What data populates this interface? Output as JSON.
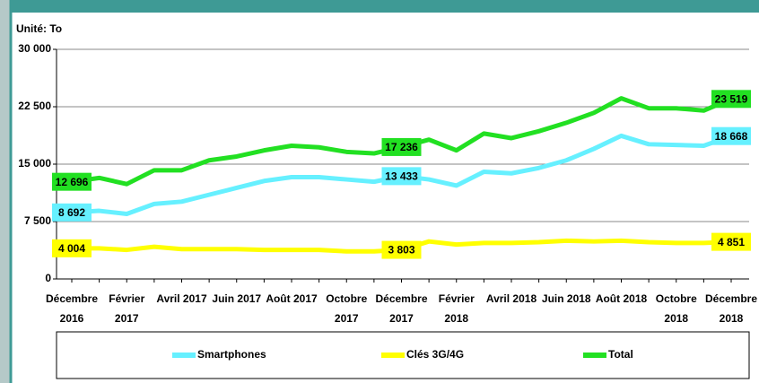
{
  "chart_data": {
    "type": "line",
    "title": "Unité: To",
    "categories": [
      "Décembre 2016",
      null,
      "Février 2017",
      null,
      "Avril 2017",
      null,
      "Juin 2017",
      null,
      "Août 2017",
      null,
      "Octobre 2017",
      null,
      "Décembre 2017",
      null,
      "Février 2018",
      null,
      "Avril 2018",
      null,
      "Juin 2018",
      null,
      "Août 2018",
      null,
      "Octobre 2018",
      null,
      "Décembre 2018"
    ],
    "series": [
      {
        "name": "Smartphones",
        "color": "#66f0ff",
        "values": [
          8692,
          8900,
          8500,
          9800,
          10100,
          11000,
          11900,
          12800,
          13300,
          13300,
          13000,
          12700,
          13433,
          13000,
          12200,
          14000,
          13800,
          14500,
          15500,
          17000,
          18700,
          17600,
          17500,
          17400,
          18668
        ],
        "value_labels": [
          "8 692",
          null,
          null,
          null,
          null,
          null,
          null,
          null,
          null,
          null,
          null,
          null,
          "13 433",
          null,
          null,
          null,
          null,
          null,
          null,
          null,
          null,
          null,
          null,
          null,
          "18 668"
        ]
      },
      {
        "name": "Clés 3G/4G",
        "color": "#ffff00",
        "values": [
          4004,
          4000,
          3800,
          4200,
          3900,
          3900,
          3900,
          3800,
          3800,
          3800,
          3600,
          3600,
          3803,
          4900,
          4500,
          4700,
          4700,
          4800,
          5000,
          4900,
          5000,
          4800,
          4700,
          4700,
          4851
        ],
        "value_labels": [
          "4 004",
          null,
          null,
          null,
          null,
          null,
          null,
          null,
          null,
          null,
          null,
          null,
          "3 803",
          null,
          null,
          null,
          null,
          null,
          null,
          null,
          null,
          null,
          null,
          null,
          "4 851"
        ]
      },
      {
        "name": "Total",
        "color": "#22e022",
        "values": [
          12696,
          13200,
          12400,
          14200,
          14200,
          15500,
          16000,
          16800,
          17400,
          17200,
          16600,
          16400,
          17236,
          18200,
          16800,
          19000,
          18400,
          19300,
          20400,
          21700,
          23600,
          22300,
          22300,
          22000,
          23519
        ],
        "value_labels": [
          "12 696",
          null,
          null,
          null,
          null,
          null,
          null,
          null,
          null,
          null,
          null,
          null,
          "17 236",
          null,
          null,
          null,
          null,
          null,
          null,
          null,
          null,
          null,
          null,
          null,
          "23 519"
        ]
      }
    ],
    "ylim": [
      0,
      30000
    ],
    "yticks": [
      0,
      {
        "value": 7500,
        "label": "7 500"
      },
      {
        "value": 15000,
        "label": "15 000"
      },
      {
        "value": 22500,
        "label": "22 500"
      },
      {
        "value": 30000,
        "label": "30 000"
      }
    ],
    "grid": true,
    "legend": "bottom"
  }
}
